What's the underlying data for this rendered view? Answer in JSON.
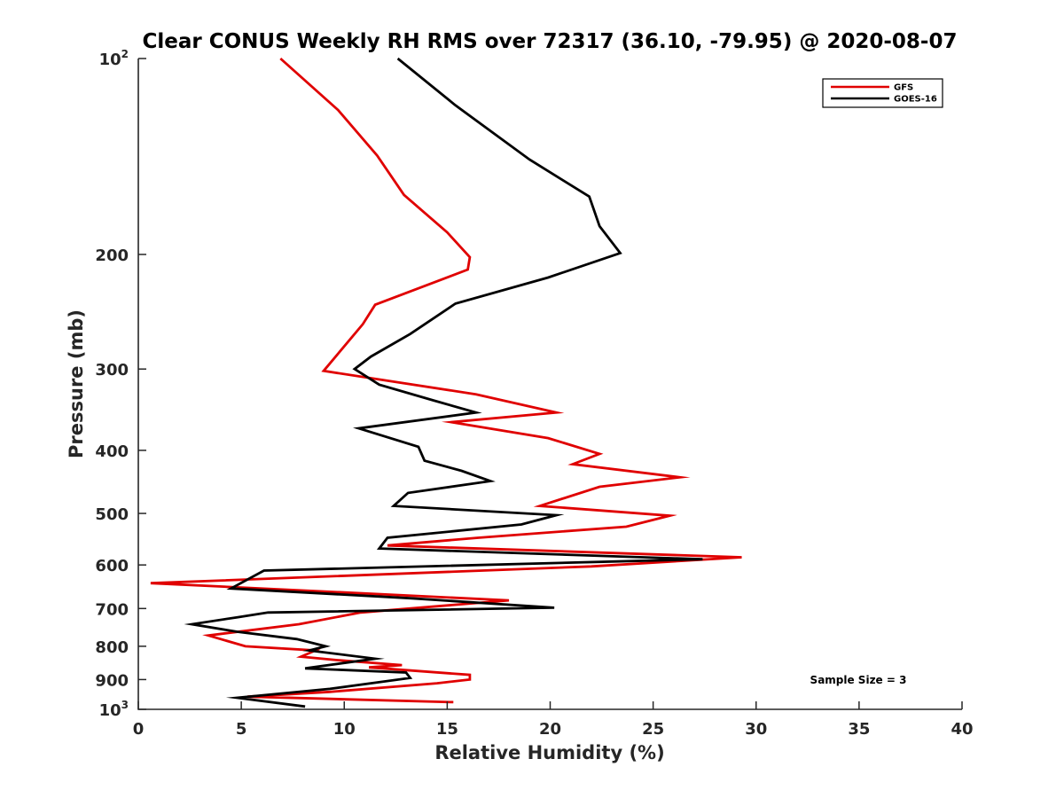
{
  "chart_data": {
    "type": "line",
    "title": "Clear CONUS Weekly RH RMS over 72317 (36.10, -79.95) @ 2020-08-07",
    "xlabel": "Relative Humidity (%)",
    "ylabel": "Pressure (mb)",
    "xlim": [
      0,
      40
    ],
    "ylim": [
      100,
      1000
    ],
    "y_scale": "log",
    "y_reversed": true,
    "x_ticks": [
      "0",
      "5",
      "10",
      "15",
      "20",
      "25",
      "30",
      "35",
      "40"
    ],
    "y_ticks": [
      {
        "value": 100,
        "label": "10",
        "sup": "2"
      },
      {
        "value": 200,
        "label": "200",
        "sup": ""
      },
      {
        "value": 300,
        "label": "300",
        "sup": ""
      },
      {
        "value": 400,
        "label": "400",
        "sup": ""
      },
      {
        "value": 500,
        "label": "500",
        "sup": ""
      },
      {
        "value": 600,
        "label": "600",
        "sup": ""
      },
      {
        "value": 700,
        "label": "700",
        "sup": ""
      },
      {
        "value": 800,
        "label": "800",
        "sup": ""
      },
      {
        "value": 900,
        "label": "900",
        "sup": ""
      },
      {
        "value": 1000,
        "label": "10",
        "sup": "3"
      }
    ],
    "grid": false,
    "legend_position": "top-right",
    "annotation": "Sample Size = 3",
    "series": [
      {
        "name": "GFS",
        "color": "#e00000",
        "points": [
          [
            6.9,
            100
          ],
          [
            9.7,
            120
          ],
          [
            11.6,
            141
          ],
          [
            12.9,
            162
          ],
          [
            15.0,
            185
          ],
          [
            16.1,
            202
          ],
          [
            16.0,
            211
          ],
          [
            11.5,
            239
          ],
          [
            10.9,
            256
          ],
          [
            9.0,
            302
          ],
          [
            16.4,
            328
          ],
          [
            20.3,
            350
          ],
          [
            15.2,
            362
          ],
          [
            19.9,
            383
          ],
          [
            22.4,
            405
          ],
          [
            21.1,
            420
          ],
          [
            26.3,
            440
          ],
          [
            22.4,
            455
          ],
          [
            19.5,
            487
          ],
          [
            25.8,
            504
          ],
          [
            23.7,
            524
          ],
          [
            16.5,
            545
          ],
          [
            12.1,
            560
          ],
          [
            29.3,
            584
          ],
          [
            22.0,
            603
          ],
          [
            0.6,
            640
          ],
          [
            18.0,
            680
          ],
          [
            10.8,
            710
          ],
          [
            7.8,
            740
          ],
          [
            3.4,
            770
          ],
          [
            5.2,
            800
          ],
          [
            8.6,
            812
          ],
          [
            7.9,
            830
          ],
          [
            9.6,
            840
          ],
          [
            12.8,
            855
          ],
          [
            11.2,
            862
          ],
          [
            16.1,
            885
          ],
          [
            16.1,
            900
          ],
          [
            14.5,
            912
          ],
          [
            9.3,
            940
          ],
          [
            5.3,
            956
          ],
          [
            15.3,
            975
          ]
        ]
      },
      {
        "name": "GOES-16",
        "color": "#000000",
        "points": [
          [
            12.6,
            100
          ],
          [
            15.4,
            118
          ],
          [
            19.0,
            143
          ],
          [
            21.9,
            163
          ],
          [
            22.4,
            181
          ],
          [
            23.4,
            199
          ],
          [
            19.9,
            217
          ],
          [
            15.4,
            238
          ],
          [
            13.2,
            265
          ],
          [
            11.3,
            287
          ],
          [
            10.5,
            300
          ],
          [
            11.7,
            317
          ],
          [
            14.3,
            335
          ],
          [
            16.4,
            350
          ],
          [
            10.7,
            370
          ],
          [
            13.6,
            395
          ],
          [
            13.9,
            415
          ],
          [
            15.7,
            430
          ],
          [
            17.1,
            446
          ],
          [
            13.1,
            465
          ],
          [
            12.4,
            487
          ],
          [
            20.3,
            503
          ],
          [
            18.6,
            520
          ],
          [
            12.1,
            545
          ],
          [
            11.7,
            566
          ],
          [
            27.4,
            588
          ],
          [
            6.1,
            612
          ],
          [
            4.5,
            652
          ],
          [
            13.2,
            675
          ],
          [
            20.2,
            698
          ],
          [
            6.3,
            710
          ],
          [
            4.8,
            722
          ],
          [
            2.6,
            740
          ],
          [
            4.8,
            760
          ],
          [
            7.7,
            780
          ],
          [
            9.1,
            800
          ],
          [
            8.3,
            812
          ],
          [
            11.5,
            836
          ],
          [
            8.1,
            865
          ],
          [
            13.0,
            878
          ],
          [
            13.2,
            895
          ],
          [
            9.3,
            930
          ],
          [
            4.8,
            960
          ],
          [
            8.1,
            990
          ]
        ]
      }
    ]
  }
}
